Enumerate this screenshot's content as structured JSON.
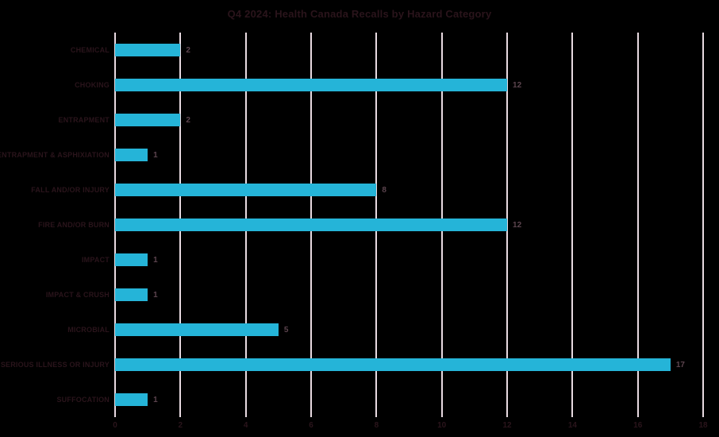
{
  "chart_data": {
    "type": "bar",
    "orientation": "horizontal",
    "title": "Q4 2024: Health Canada Recalls by Hazard Category",
    "categories": [
      "CHEMICAL",
      "CHOKING",
      "ENTRAPMENT",
      "ENTRAPMENT & ASPHIXIATION",
      "FALL AND/OR INJURY",
      "FIRE AND/OR BURN",
      "IMPACT",
      "IMPACT & CRUSH",
      "MICROBIAL",
      "SERIOUS ILLNESS OR INJURY",
      "SUFFOCATION"
    ],
    "values": [
      2,
      12,
      2,
      1,
      8,
      12,
      1,
      1,
      5,
      17,
      1
    ],
    "value_labels": [
      "2",
      "12",
      "2",
      "1",
      "8",
      "12",
      "1",
      "1",
      "5",
      "17",
      "1"
    ],
    "xlabel": "",
    "ylabel": "",
    "xlim": [
      0,
      18
    ],
    "xticks": [
      "0",
      "2",
      "4",
      "6",
      "8",
      "10",
      "12",
      "14",
      "16",
      "18"
    ],
    "grid": true,
    "legend_position": "none",
    "colors": {
      "background": "#000000",
      "bar": "#25b4d8",
      "grid": "#e8dae1",
      "title": "#2a141b",
      "category_label": "#2a141b",
      "tick_label": "#2a141b",
      "value_label": "#5c444e"
    }
  }
}
